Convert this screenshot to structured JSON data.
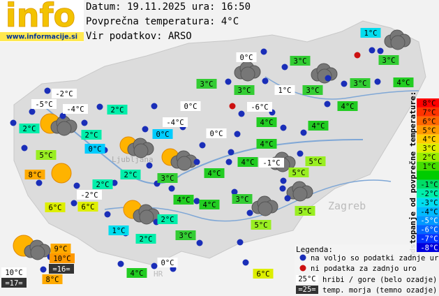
{
  "header": {
    "logo": "info",
    "url": "www.informacije.si",
    "date_line": "Datum: 19.11.2025 ura: 16:50",
    "avg_line": "Povprečna temperatura: 4°C",
    "source_line": "Vir podatkov: ARSO"
  },
  "map_labels": [
    "Ljubljana",
    "Zagreb",
    "HR"
  ],
  "stations": [
    {
      "label": "1°C",
      "color": "#00ddee"
    },
    {
      "label": "0°C",
      "color": "#ffffff"
    },
    {
      "label": "3°C",
      "color": "#33cc33"
    },
    {
      "label": "3°C",
      "color": "#33cc33"
    },
    {
      "label": "3°C",
      "color": "#33cc33"
    },
    {
      "label": "3°C",
      "color": "#33cc33"
    },
    {
      "label": "1°C",
      "color": "#ffffff"
    },
    {
      "label": "3°C",
      "color": "#33cc33"
    },
    {
      "label": "3°C",
      "color": "#33cc33"
    },
    {
      "label": "4°C",
      "color": "#22cc22"
    },
    {
      "label": "-2°C",
      "color": "#ffffff"
    },
    {
      "label": "-5°C",
      "color": "#ffffff"
    },
    {
      "label": "-4°C",
      "color": "#ffffff"
    },
    {
      "label": "2°C",
      "color": "#00eeaa"
    },
    {
      "label": "0°C",
      "color": "#ffffff"
    },
    {
      "label": "-6°C",
      "color": "#ffffff"
    },
    {
      "label": "4°C",
      "color": "#22cc22"
    },
    {
      "label": "2°C",
      "color": "#00eeaa"
    },
    {
      "label": "-4°C",
      "color": "#ffffff"
    },
    {
      "label": "4°C",
      "color": "#22cc22"
    },
    {
      "label": "4°C",
      "color": "#22cc22"
    },
    {
      "label": "2°C",
      "color": "#00eeaa"
    },
    {
      "label": "0°C",
      "color": "#00ccff"
    },
    {
      "label": "0°C",
      "color": "#ffffff"
    },
    {
      "label": "0°C",
      "color": "#00ccff"
    },
    {
      "label": "4°C",
      "color": "#22cc22"
    },
    {
      "label": "5°C",
      "color": "#99ee22"
    },
    {
      "label": "4°C",
      "color": "#22cc22"
    },
    {
      "label": "-1°C",
      "color": "#ffffff"
    },
    {
      "label": "5°C",
      "color": "#99ee22"
    },
    {
      "label": "8°C",
      "color": "#ffaa00"
    },
    {
      "label": "2°C",
      "color": "#00eeaa"
    },
    {
      "label": "3°C",
      "color": "#33cc33"
    },
    {
      "label": "4°C",
      "color": "#22cc22"
    },
    {
      "label": "5°C",
      "color": "#99ee22"
    },
    {
      "label": "2°C",
      "color": "#00eeaa"
    },
    {
      "label": "-2°C",
      "color": "#ffffff"
    },
    {
      "label": "6°C",
      "color": "#ddee00"
    },
    {
      "label": "6°C",
      "color": "#ddee00"
    },
    {
      "label": "4°C",
      "color": "#22cc22"
    },
    {
      "label": "4°C",
      "color": "#22cc22"
    },
    {
      "label": "3°C",
      "color": "#33cc33"
    },
    {
      "label": "5°C",
      "color": "#99ee22"
    },
    {
      "label": "2°C",
      "color": "#00eeaa"
    },
    {
      "label": "5°C",
      "color": "#99ee22"
    },
    {
      "label": "1°C",
      "color": "#00ddee"
    },
    {
      "label": "3°C",
      "color": "#33cc33"
    },
    {
      "label": "2°C",
      "color": "#00eeaa"
    },
    {
      "label": "9°C",
      "color": "#ffaa00"
    },
    {
      "label": "10°C",
      "color": "#ff9900"
    },
    {
      "label": "=16=",
      "color": "#333333"
    },
    {
      "label": "0°C",
      "color": "#ffffff"
    },
    {
      "label": "10°C",
      "color": "#ffffff"
    },
    {
      "label": "4°C",
      "color": "#22cc22"
    },
    {
      "label": "8°C",
      "color": "#ffaa00"
    },
    {
      "label": "6°C",
      "color": "#ddee00"
    },
    {
      "label": "=17=",
      "color": "#333333"
    }
  ],
  "scale": {
    "title": "Odstopanje od povprečne temperature:",
    "steps": [
      {
        "label": "8°C",
        "color": "#ff0000"
      },
      {
        "label": "7°C",
        "color": "#ff3300"
      },
      {
        "label": "6°C",
        "color": "#ff6600"
      },
      {
        "label": "5°C",
        "color": "#ff9900"
      },
      {
        "label": "4°C",
        "color": "#ffcc00"
      },
      {
        "label": "3°C",
        "color": "#ddee00"
      },
      {
        "label": "2°C",
        "color": "#99ee00"
      },
      {
        "label": "1°C",
        "color": "#44dd00"
      },
      {
        "label": null,
        "color": "#00cc00"
      },
      {
        "label": "-1°C",
        "color": "#00dd66"
      },
      {
        "label": "-2°C",
        "color": "#00eeaa"
      },
      {
        "label": "-3°C",
        "color": "#00ddee"
      },
      {
        "label": "-4°C",
        "color": "#00bbff"
      },
      {
        "label": "-5°C",
        "color": "#0099ff"
      },
      {
        "label": "-6°C",
        "color": "#0066ff"
      },
      {
        "label": "-7°C",
        "color": "#0033ff"
      },
      {
        "label": "-8°C",
        "color": "#0000dd"
      }
    ]
  },
  "legend": {
    "title": "Legenda:",
    "available": "na voljo so podatki zadnje ure",
    "missing": "ni podatka za zadnjo uro",
    "mountain_sample": "25°C",
    "mountain_text": "hribi / gore (belo ozadje)",
    "sea_sample": "=25=",
    "sea_text": "temp. morja (temno ozadje)"
  }
}
